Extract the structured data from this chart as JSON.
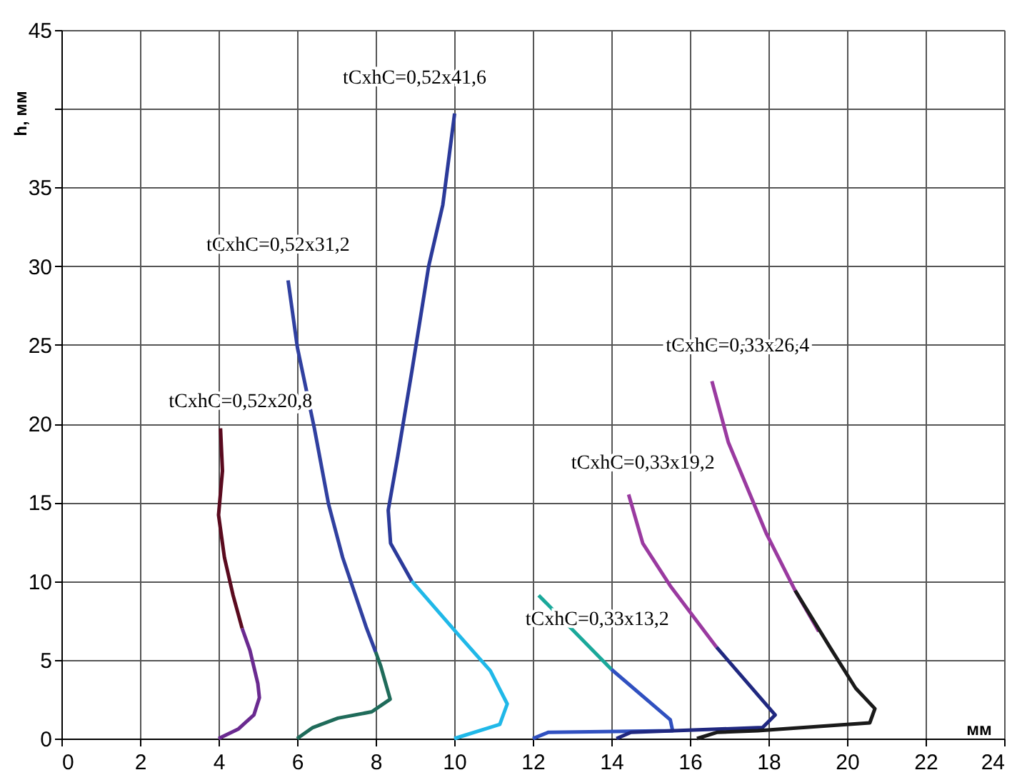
{
  "chart_data": {
    "type": "line",
    "xlabel": "мм",
    "ylabel": "h, мм",
    "xlim": [
      0,
      24
    ],
    "xticks": [
      0,
      2,
      4,
      6,
      8,
      10,
      12,
      14,
      16,
      18,
      20,
      22,
      24
    ],
    "ylim": [
      0,
      45
    ],
    "yticks": [
      0,
      5,
      10,
      15,
      20,
      25,
      30,
      35,
      {
        "value": 40,
        "label": null
      },
      45
    ],
    "grid": true,
    "legend": false,
    "marker": "none",
    "line_style": "solid",
    "series": [
      {
        "color": "#5a0a1e",
        "x": [
          4.05,
          4.1,
          4.0,
          4.15,
          4.37,
          4.6
        ],
        "values": [
          19.7,
          17,
          14.2,
          11.5,
          9.1,
          7
        ]
      },
      {
        "color": "#6a2a90",
        "x": [
          4.6,
          4.8,
          5.0,
          5.04,
          4.9,
          4.5,
          4.0
        ],
        "values": [
          7,
          5.6,
          3.5,
          2.6,
          1.5,
          0.6,
          0
        ]
      },
      {
        "color": "#3040a0",
        "x": [
          5.77,
          6.01,
          6.44,
          6.8,
          7.16,
          7.77,
          8.0
        ],
        "values": [
          29.1,
          24.8,
          19.7,
          14.9,
          11.5,
          7.0,
          5.5
        ]
      },
      {
        "color": "#1f6b5a",
        "x": [
          8.0,
          8.13,
          8.37,
          7.9,
          7.04,
          6.4,
          6.0
        ],
        "values": [
          5.5,
          4.6,
          2.5,
          1.7,
          1.3,
          0.7,
          0
        ]
      },
      {
        "color": "#2b3a9a",
        "x": [
          10.01,
          9.71,
          9.35,
          8.92,
          8.56,
          8.32,
          8.38,
          8.92
        ],
        "values": [
          39.7,
          33.9,
          30.0,
          23.3,
          17.9,
          14.5,
          12.4,
          10.0
        ]
      },
      {
        "color": "#20b8e8",
        "x": [
          8.92,
          10.07,
          10.92,
          11.35,
          11.16,
          10.0
        ],
        "values": [
          10.0,
          6.7,
          4.3,
          2.2,
          0.9,
          0
        ]
      },
      {
        "color": "#1aa89a",
        "x": [
          12.15,
          14.0
        ],
        "values": [
          9.1,
          4.4
        ]
      },
      {
        "color": "#3050c0",
        "x": [
          14.0,
          15.5,
          15.56,
          12.4,
          12.0
        ],
        "values": [
          4.4,
          1.2,
          0.5,
          0.4,
          0
        ]
      },
      {
        "color": "#9a3aa0",
        "x": [
          14.44,
          14.8,
          15.5,
          16.68
        ],
        "values": [
          15.5,
          12.4,
          9.7,
          5.8
        ]
      },
      {
        "color": "#202880",
        "x": [
          16.68,
          18.17,
          17.85,
          14.5,
          14.13
        ],
        "values": [
          5.8,
          1.5,
          0.7,
          0.4,
          0
        ]
      },
      {
        "color": "#9a3aa0",
        "x": [
          16.56,
          16.98,
          17.95,
          18.68,
          19.28
        ],
        "values": [
          22.7,
          18.8,
          13.0,
          9.4,
          6.8
        ]
      },
      {
        "color": "#1a1a1a",
        "x": [
          18.68,
          19.59,
          20.22,
          20.71,
          20.58,
          17.73,
          16.7,
          16.18
        ],
        "values": [
          9.4,
          5.7,
          3.2,
          1.9,
          1.0,
          0.5,
          0.4,
          0
        ]
      }
    ],
    "annotations": [
      {
        "text": "tCxhC=0,52x41,6",
        "x": 10.01,
        "y": 39.7
      },
      {
        "text": "tCxhC=0,52x31,2",
        "x": 5.77,
        "y": 29.1
      },
      {
        "text": "tCxhC=0,52x20,8",
        "x": 4.05,
        "y": 19.7
      },
      {
        "text": "tCxhC=0,33x26,4",
        "x": 16.56,
        "y": 22.7
      },
      {
        "text": "tCxhC=0,33x19,2",
        "x": 14.44,
        "y": 15.5
      },
      {
        "text": "tCxhC=0,33x13,2",
        "x": 12.15,
        "y": 9.1
      }
    ]
  }
}
